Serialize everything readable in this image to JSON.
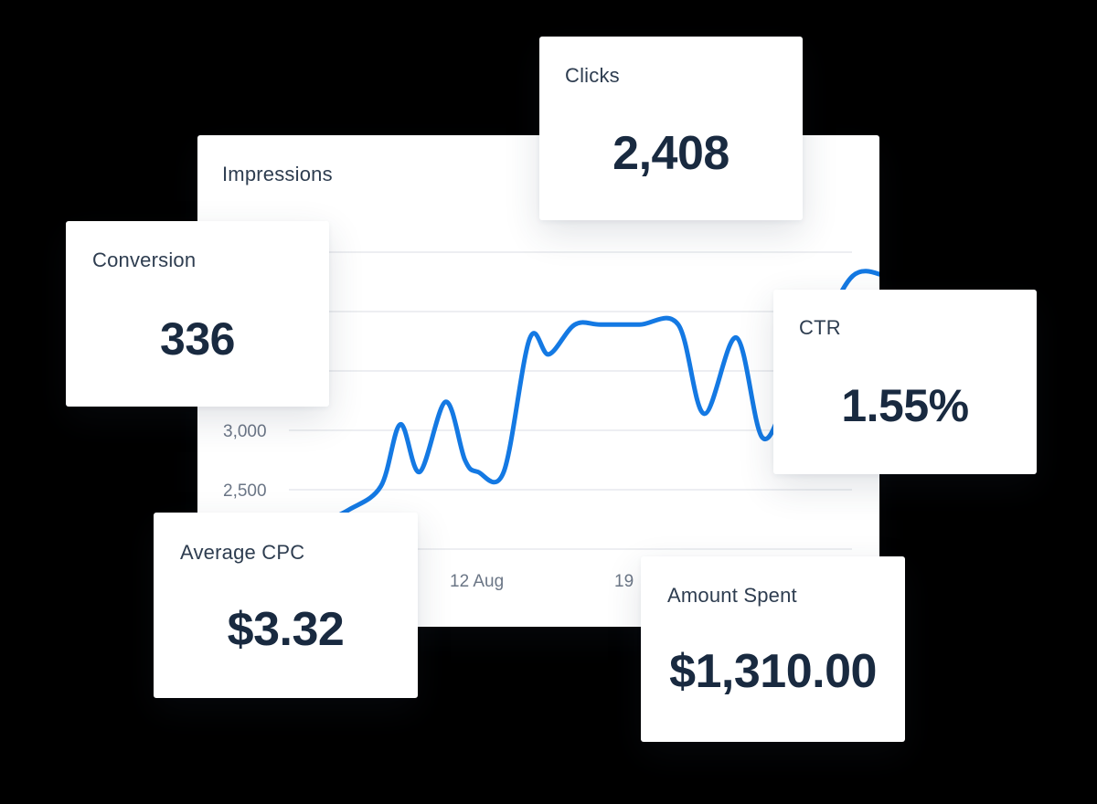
{
  "chart": {
    "title": "Impressions",
    "accent_color": "#1479e3"
  },
  "chart_data": {
    "type": "line",
    "title": "Impressions",
    "xlabel": "",
    "ylabel": "",
    "y_ticks": [
      2000,
      2500,
      3000,
      3500,
      4000,
      4500
    ],
    "y_tick_labels": [
      "",
      "2,500",
      "3,000",
      "",
      "",
      ""
    ],
    "ylim": [
      2000,
      4500
    ],
    "x_tick_labels": [
      "12 Aug",
      "19"
    ],
    "grid": true,
    "series": [
      {
        "x": [
          0,
          0.5,
          1,
          1.3,
          1.6,
          2,
          2.3,
          2.5,
          2.9,
          3.3,
          3.6,
          4,
          4.4,
          5,
          5.6,
          6,
          6.5,
          6.9,
          7.3,
          7.8,
          8.3,
          8.8,
          9.1,
          9.4
        ],
        "values": [
          2200,
          2330,
          2530,
          3050,
          2650,
          3240,
          2750,
          2650,
          2650,
          3770,
          3640,
          3890,
          3890,
          3890,
          3890,
          3140,
          3780,
          2940,
          3300,
          3810,
          4300,
          4300,
          4200,
          4150
        ]
      }
    ]
  },
  "cards": {
    "clicks": {
      "label": "Clicks",
      "value": "2,408"
    },
    "conversion": {
      "label": "Conversion",
      "value": "336"
    },
    "ctr": {
      "label": "CTR",
      "value": "1.55%"
    },
    "average_cpc": {
      "label": "Average CPC",
      "value": "$3.32"
    },
    "amount_spent": {
      "label": "Amount Spent",
      "value": "$1,310.00"
    }
  }
}
